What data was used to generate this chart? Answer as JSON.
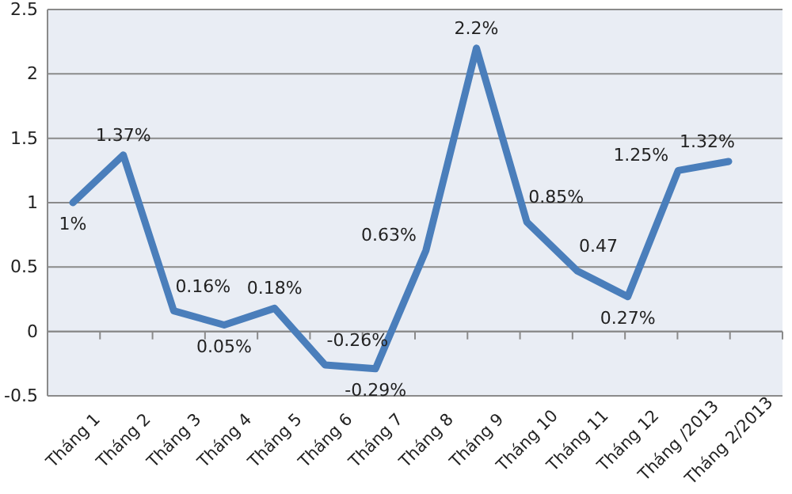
{
  "chart_data": {
    "type": "line",
    "categories": [
      "Tháng 1",
      "Tháng 2",
      "Tháng 3",
      "Tháng 4",
      "Tháng 5",
      "Tháng 6",
      "Tháng 7",
      "Tháng 8",
      "Tháng 9",
      "Tháng 10",
      "Tháng 11",
      "Tháng 12",
      "Tháng /2013",
      "Tháng 2/2013"
    ],
    "series": [
      {
        "color": "#4a7ebb",
        "values": [
          1,
          1.37,
          0.16,
          0.05,
          0.18,
          -0.26,
          -0.29,
          0.63,
          2.2,
          0.85,
          0.47,
          0.27,
          1.25,
          1.32
        ],
        "value_labels": [
          "1%",
          "1.37%",
          "0.16%",
          "0.05%",
          "0.18%",
          "-0.26%",
          "-0.29%",
          "0.63%",
          "2.2%",
          "0.85%",
          "0.47",
          "0.27%",
          "1.25%",
          "1.32%"
        ]
      }
    ],
    "ylim": [
      -0.5,
      2.5
    ],
    "yticks": [
      -0.5,
      0,
      0.5,
      1,
      1.5,
      2,
      2.5
    ],
    "grid": "y",
    "marker": "none",
    "line_style": "solid"
  }
}
